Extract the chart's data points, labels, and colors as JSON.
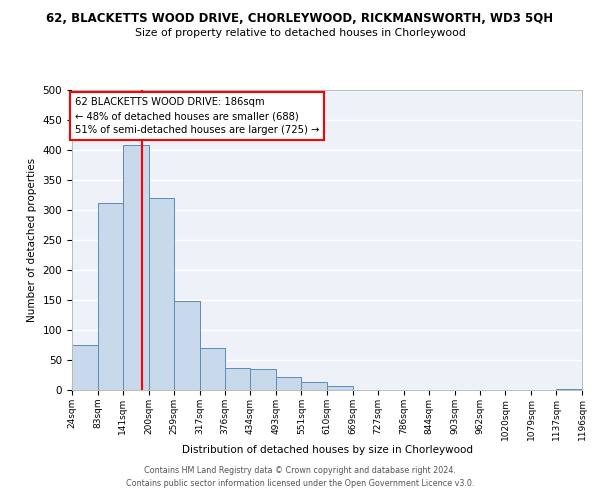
{
  "title_line1": "62, BLACKETTS WOOD DRIVE, CHORLEYWOOD, RICKMANSWORTH, WD3 5QH",
  "title_line2": "Size of property relative to detached houses in Chorleywood",
  "xlabel": "Distribution of detached houses by size in Chorleywood",
  "ylabel": "Number of detached properties",
  "bin_edges": [
    24,
    83,
    141,
    200,
    259,
    317,
    376,
    434,
    493,
    551,
    610,
    669,
    727,
    786,
    844,
    903,
    962,
    1020,
    1079,
    1137,
    1196
  ],
  "bar_heights": [
    75,
    312,
    408,
    320,
    148,
    70,
    37,
    35,
    22,
    14,
    6,
    0,
    0,
    0,
    0,
    0,
    0,
    0,
    0,
    2
  ],
  "bar_color": "#c9d9ec",
  "bar_edge_color": "#5b8db8",
  "reference_line_x": 186,
  "annotation_line1": "62 BLACKETTS WOOD DRIVE: 186sqm",
  "annotation_line2": "← 48% of detached houses are smaller (688)",
  "annotation_line3": "51% of semi-detached houses are larger (725) →",
  "annotation_box_color": "white",
  "annotation_box_edge_color": "red",
  "ref_line_color": "red",
  "ylim": [
    0,
    500
  ],
  "tick_labels": [
    "24sqm",
    "83sqm",
    "141sqm",
    "200sqm",
    "259sqm",
    "317sqm",
    "376sqm",
    "434sqm",
    "493sqm",
    "551sqm",
    "610sqm",
    "669sqm",
    "727sqm",
    "786sqm",
    "844sqm",
    "903sqm",
    "962sqm",
    "1020sqm",
    "1079sqm",
    "1137sqm",
    "1196sqm"
  ],
  "footer_line1": "Contains HM Land Registry data © Crown copyright and database right 2024.",
  "footer_line2": "Contains public sector information licensed under the Open Government Licence v3.0.",
  "bg_color": "#eef2f8",
  "grid_color": "white",
  "yticks": [
    0,
    50,
    100,
    150,
    200,
    250,
    300,
    350,
    400,
    450,
    500
  ]
}
